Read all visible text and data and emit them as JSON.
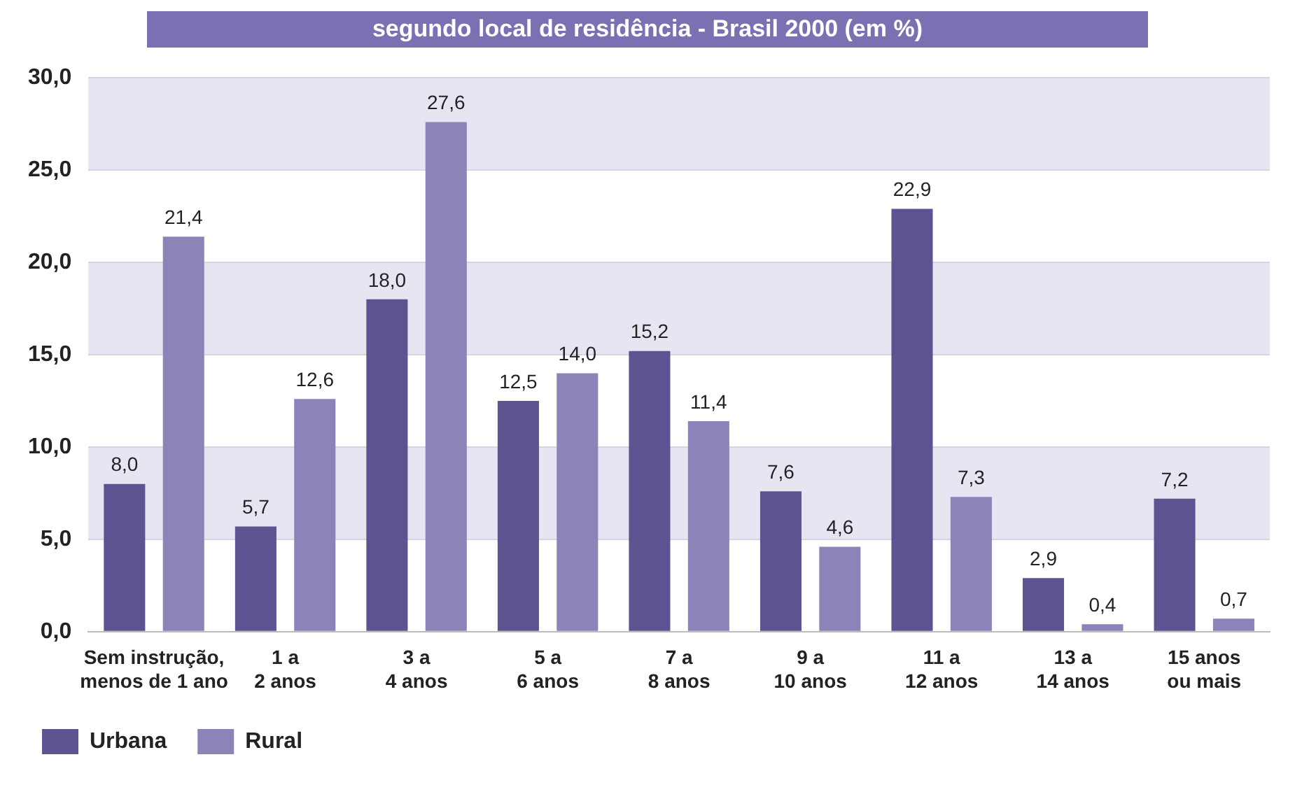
{
  "chart_data": {
    "type": "bar",
    "title": "segundo local de residência - Brasil 2000 (em %)",
    "categories": [
      "Sem instrução,\nmenos de 1 ano",
      "1 a\n2 anos",
      "3 a\n4 anos",
      "5 a\n6 anos",
      "7 a\n8 anos",
      "9 a\n10 anos",
      "11 a\n12 anos",
      "13 a\n14 anos",
      "15 anos\nou mais"
    ],
    "series": [
      {
        "name": "Urbana",
        "color": "#5c5490",
        "values": [
          8.0,
          5.7,
          18.0,
          12.5,
          15.2,
          7.6,
          22.9,
          2.9,
          7.2
        ],
        "value_labels": [
          "8,0",
          "5,7",
          "18,0",
          "12,5",
          "15,2",
          "7,6",
          "22,9",
          "2,9",
          "7,2"
        ]
      },
      {
        "name": "Rural",
        "color": "#8c84b8",
        "values": [
          21.4,
          12.6,
          27.6,
          14.0,
          11.4,
          4.6,
          7.3,
          0.4,
          0.7
        ],
        "value_labels": [
          "21,4",
          "12,6",
          "27,6",
          "14,0",
          "11,4",
          "4,6",
          "7,3",
          "0,4",
          "0,7"
        ]
      }
    ],
    "ylim": [
      0,
      30
    ],
    "yticks": [
      {
        "value": 0,
        "label": "0,0"
      },
      {
        "value": 5,
        "label": "5,0"
      },
      {
        "value": 10,
        "label": "10,0"
      },
      {
        "value": 15,
        "label": "15,0"
      },
      {
        "value": 20,
        "label": "20,0"
      },
      {
        "value": 25,
        "label": "25,0"
      },
      {
        "value": 30,
        "label": "30,0"
      }
    ],
    "grid": "y",
    "legend": "bottom left"
  }
}
